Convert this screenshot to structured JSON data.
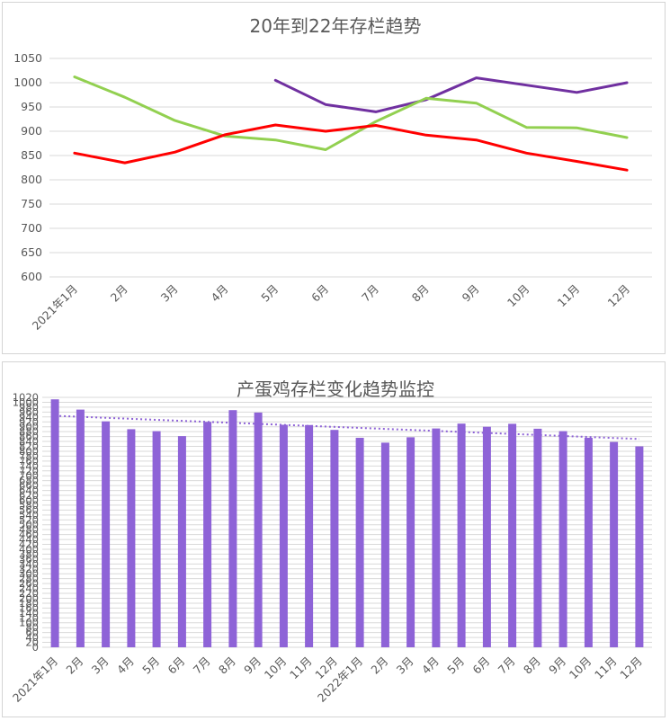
{
  "colors": {
    "series_purple": "#7030a0",
    "series_green": "#92d050",
    "series_red": "#ff0000",
    "bar_fill": "#8e63d7",
    "trend_line": "#8e63d7",
    "gridline": "#d9d9d9",
    "text": "#595959"
  },
  "chart_data": [
    {
      "type": "line",
      "title": "20年到22年存栏趋势",
      "xlabel": "",
      "ylabel": "",
      "categories": [
        "2021年1月",
        "2月",
        "3月",
        "4月",
        "5月",
        "6月",
        "7月",
        "8月",
        "9月",
        "10月",
        "11月",
        "12月"
      ],
      "y_ticks": [
        "1050",
        "1000",
        "950",
        "900",
        "850",
        "800",
        "750",
        "700",
        "650",
        "600"
      ],
      "ylim": [
        600,
        1050
      ],
      "grid": true,
      "legend": "none",
      "series": [
        {
          "color": "#7030a0",
          "values": [
            null,
            null,
            null,
            null,
            1005,
            955,
            940,
            965,
            1010,
            995,
            980,
            1000
          ]
        },
        {
          "color": "#92d050",
          "values": [
            1012,
            970,
            922,
            890,
            882,
            862,
            920,
            968,
            958,
            908,
            907,
            887
          ]
        },
        {
          "color": "#ff0000",
          "values": [
            855,
            835,
            857,
            893,
            913,
            900,
            912,
            892,
            882,
            855,
            838,
            820
          ]
        }
      ]
    },
    {
      "type": "bar",
      "title": "产蛋鸡存栏变化趋势监控",
      "xlabel": "",
      "ylabel": "",
      "categories": [
        "2021年1月",
        "2月",
        "3月",
        "4月",
        "5月",
        "6月",
        "7月",
        "8月",
        "9月",
        "10月",
        "11月",
        "12月",
        "2022年1月",
        "2月",
        "3月",
        "4月",
        "5月",
        "6月",
        "7月",
        "8月",
        "9月",
        "10月",
        "11月",
        "12月"
      ],
      "values": [
        1012,
        970,
        922,
        890,
        882,
        862,
        920,
        968,
        958,
        908,
        907,
        887,
        855,
        835,
        857,
        893,
        913,
        900,
        912,
        892,
        882,
        855,
        838,
        820
      ],
      "y_ticks": [
        "1020",
        "1000",
        "980",
        "960",
        "940",
        "920",
        "900",
        "880",
        "860",
        "840",
        "820",
        "800",
        "780",
        "760",
        "740",
        "720",
        "700",
        "680",
        "660",
        "640",
        "620",
        "600",
        "580",
        "560",
        "540",
        "520",
        "500",
        "480",
        "460",
        "440",
        "420",
        "400",
        "380",
        "360",
        "340",
        "320",
        "300",
        "280",
        "260",
        "240",
        "220",
        "200",
        "180",
        "160",
        "140",
        "120",
        "100",
        "80",
        "60",
        "40",
        "20",
        "0"
      ],
      "ylim": [
        0,
        1020
      ],
      "grid": true,
      "legend": "none",
      "trendline": {
        "type": "linear",
        "style": "dotted"
      }
    }
  ]
}
